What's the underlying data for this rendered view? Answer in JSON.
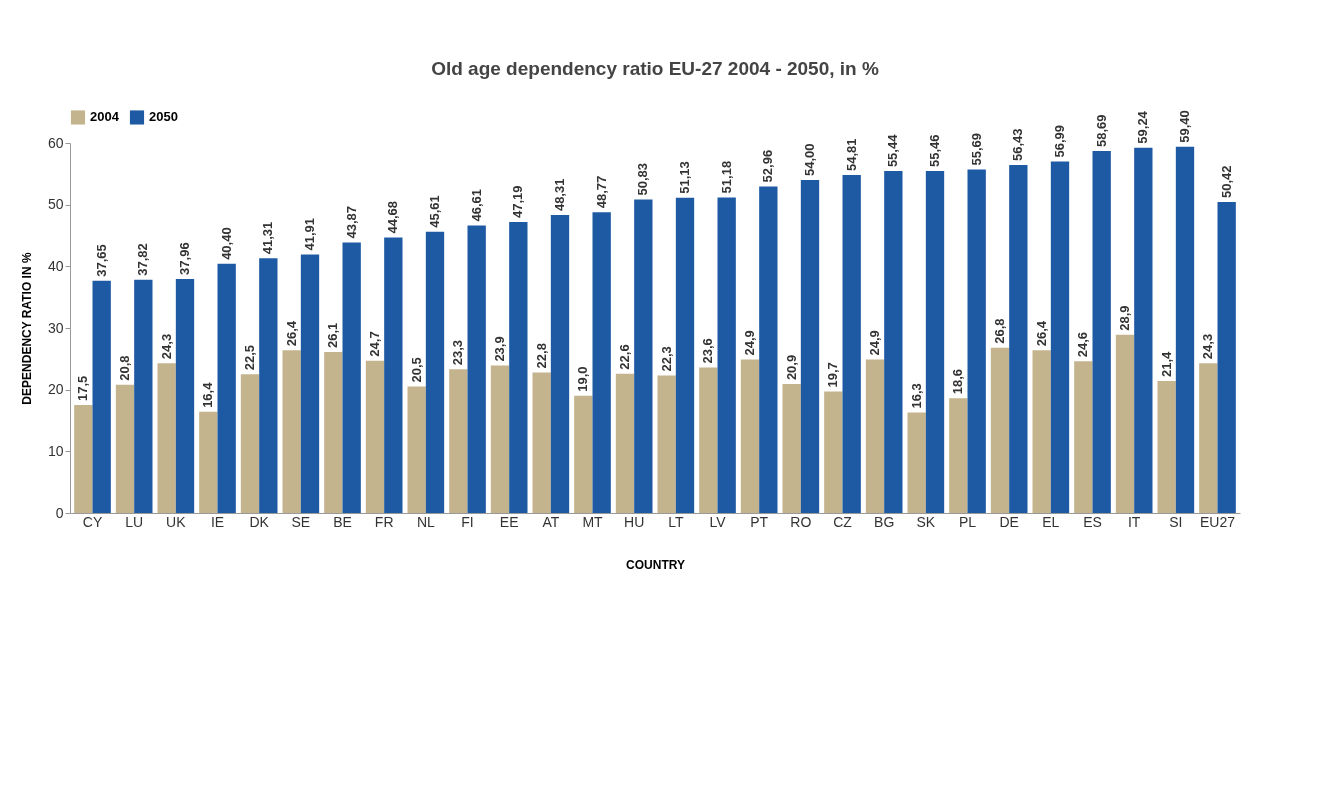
{
  "chart_data": {
    "type": "bar",
    "title": "Old age dependency ratio EU-27 2004 - 2050, in %",
    "xlabel": "COUNTRY",
    "ylabel": "DEPENDENCY RATIO IN %",
    "categories": [
      "CY",
      "LU",
      "UK",
      "IE",
      "DK",
      "SE",
      "BE",
      "FR",
      "NL",
      "FI",
      "EE",
      "AT",
      "MT",
      "HU",
      "LT",
      "LV",
      "PT",
      "RO",
      "CZ",
      "BG",
      "SK",
      "PL",
      "DE",
      "EL",
      "ES",
      "IT",
      "SI",
      "EU27"
    ],
    "series": [
      {
        "name": "2004",
        "color": "#c4b48e",
        "values": [
          17.5,
          20.8,
          24.3,
          16.4,
          22.5,
          26.4,
          26.1,
          24.7,
          20.5,
          23.3,
          23.9,
          22.8,
          19.0,
          22.6,
          22.3,
          23.6,
          24.9,
          20.9,
          19.7,
          24.9,
          16.3,
          18.6,
          26.8,
          26.4,
          24.6,
          28.9,
          21.4,
          24.3
        ],
        "value_labels": [
          "17,5",
          "20,8",
          "24,3",
          "16,4",
          "22,5",
          "26,4",
          "26,1",
          "24,7",
          "20,5",
          "23,3",
          "23,9",
          "22,8",
          "19,0",
          "22,6",
          "22,3",
          "23,6",
          "24,9",
          "20,9",
          "19,7",
          "24,9",
          "16,3",
          "18,6",
          "26,8",
          "26,4",
          "24,6",
          "28,9",
          "21,4",
          "24,3"
        ]
      },
      {
        "name": "2050",
        "color": "#1d5aa3",
        "values": [
          37.65,
          37.82,
          37.96,
          40.4,
          41.31,
          41.91,
          43.87,
          44.68,
          45.61,
          46.61,
          47.19,
          48.31,
          48.77,
          50.83,
          51.13,
          51.18,
          52.96,
          54.0,
          54.81,
          55.44,
          55.46,
          55.69,
          56.43,
          56.99,
          58.69,
          59.24,
          59.4,
          50.42
        ],
        "value_labels": [
          "37,65",
          "37,82",
          "37,96",
          "40,40",
          "41,31",
          "41,91",
          "43,87",
          "44,68",
          "45,61",
          "46,61",
          "47,19",
          "48,31",
          "48,77",
          "50,83",
          "51,13",
          "51,18",
          "52,96",
          "54,00",
          "54,81",
          "55,44",
          "55,46",
          "55,69",
          "56,43",
          "56,99",
          "58,69",
          "59,24",
          "59,40",
          "50,42"
        ]
      }
    ],
    "ylim": [
      0,
      60
    ],
    "yticks": [
      0,
      10,
      20,
      30,
      40,
      50,
      60
    ],
    "grid": false,
    "legend": "top"
  }
}
